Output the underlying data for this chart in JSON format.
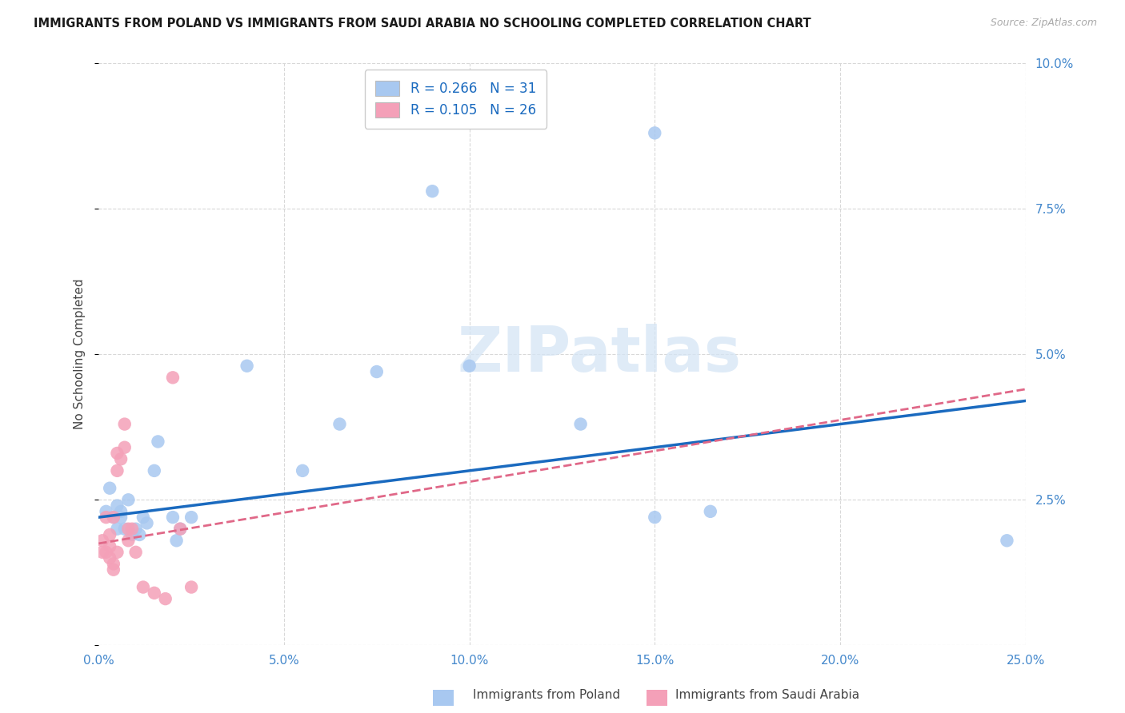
{
  "title": "IMMIGRANTS FROM POLAND VS IMMIGRANTS FROM SAUDI ARABIA NO SCHOOLING COMPLETED CORRELATION CHART",
  "source": "Source: ZipAtlas.com",
  "ylabel": "No Schooling Completed",
  "xlim": [
    0.0,
    0.25
  ],
  "ylim": [
    0.0,
    0.1
  ],
  "xticks": [
    0.0,
    0.05,
    0.1,
    0.15,
    0.2,
    0.25
  ],
  "yticks": [
    0.0,
    0.025,
    0.05,
    0.075,
    0.1
  ],
  "poland_R": 0.266,
  "poland_N": 31,
  "saudi_R": 0.105,
  "saudi_N": 26,
  "poland_color": "#a8c8f0",
  "saudi_color": "#f4a0b8",
  "poland_line_color": "#1a6abf",
  "saudi_line_color": "#e06888",
  "background_color": "#ffffff",
  "grid_color": "#d8d8d8",
  "watermark": "ZIPatlas",
  "axis_color": "#4488cc",
  "poland_label": "Immigrants from Poland",
  "saudi_label": "Immigrants from Saudi Arabia",
  "poland_x": [
    0.002,
    0.003,
    0.004,
    0.005,
    0.005,
    0.006,
    0.006,
    0.007,
    0.008,
    0.009,
    0.01,
    0.011,
    0.012,
    0.013,
    0.015,
    0.016,
    0.02,
    0.021,
    0.022,
    0.025,
    0.04,
    0.055,
    0.065,
    0.075,
    0.09,
    0.1,
    0.13,
    0.15,
    0.165,
    0.245,
    0.15
  ],
  "poland_y": [
    0.023,
    0.027,
    0.022,
    0.024,
    0.02,
    0.023,
    0.022,
    0.02,
    0.025,
    0.019,
    0.02,
    0.019,
    0.022,
    0.021,
    0.03,
    0.035,
    0.022,
    0.018,
    0.02,
    0.022,
    0.048,
    0.03,
    0.038,
    0.047,
    0.078,
    0.048,
    0.038,
    0.022,
    0.023,
    0.018,
    0.088
  ],
  "saudi_x": [
    0.001,
    0.001,
    0.002,
    0.002,
    0.003,
    0.003,
    0.003,
    0.004,
    0.004,
    0.004,
    0.005,
    0.005,
    0.005,
    0.006,
    0.007,
    0.007,
    0.008,
    0.008,
    0.009,
    0.01,
    0.012,
    0.015,
    0.018,
    0.02,
    0.022,
    0.025
  ],
  "saudi_y": [
    0.018,
    0.016,
    0.022,
    0.016,
    0.019,
    0.015,
    0.017,
    0.014,
    0.022,
    0.013,
    0.016,
    0.03,
    0.033,
    0.032,
    0.038,
    0.034,
    0.02,
    0.018,
    0.02,
    0.016,
    0.01,
    0.009,
    0.008,
    0.046,
    0.02,
    0.01
  ]
}
